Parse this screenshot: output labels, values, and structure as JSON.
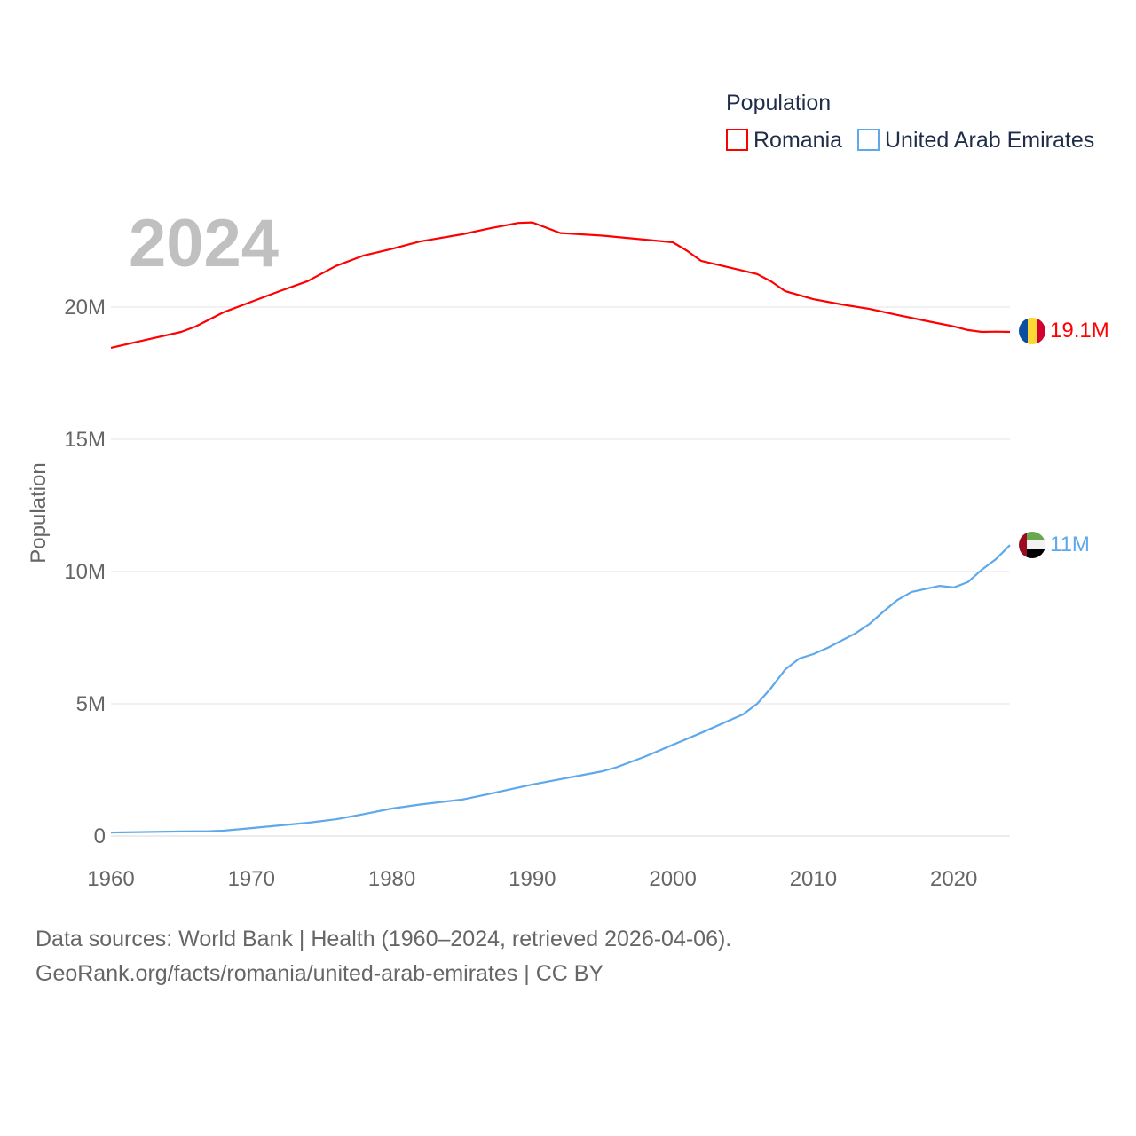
{
  "chart_data": {
    "type": "line",
    "title": "2024",
    "ylabel": "Population",
    "xlabel": "",
    "xlim": [
      1960,
      2024
    ],
    "ylim": [
      0,
      23500000
    ],
    "x_ticks": [
      1960,
      1970,
      1980,
      1990,
      2000,
      2010,
      2020
    ],
    "x_tick_labels": [
      "1960",
      "1970",
      "1980",
      "1990",
      "2000",
      "2010",
      "2020"
    ],
    "y_ticks": [
      0,
      5000000,
      10000000,
      15000000,
      20000000
    ],
    "y_tick_labels": [
      "0",
      "5M",
      "10M",
      "15M",
      "20M"
    ],
    "grid": true,
    "legend": {
      "title": "Population",
      "placement": "top-right"
    },
    "series": [
      {
        "name": "Romania",
        "color": "#ff0000",
        "end_label": "19.1M",
        "flag": "romania-flag",
        "points": [
          [
            1960,
            18.46
          ],
          [
            1962,
            18.7
          ],
          [
            1965,
            19.06
          ],
          [
            1966,
            19.26
          ],
          [
            1968,
            19.8
          ],
          [
            1970,
            20.2
          ],
          [
            1972,
            20.6
          ],
          [
            1974,
            20.98
          ],
          [
            1976,
            21.55
          ],
          [
            1978,
            21.95
          ],
          [
            1980,
            22.2
          ],
          [
            1982,
            22.48
          ],
          [
            1985,
            22.75
          ],
          [
            1987,
            22.98
          ],
          [
            1989,
            23.18
          ],
          [
            1990,
            23.2
          ],
          [
            1992,
            22.8
          ],
          [
            1995,
            22.7
          ],
          [
            1998,
            22.55
          ],
          [
            2000,
            22.45
          ],
          [
            2001,
            22.13
          ],
          [
            2002,
            21.75
          ],
          [
            2004,
            21.5
          ],
          [
            2006,
            21.25
          ],
          [
            2007,
            20.97
          ],
          [
            2008,
            20.6
          ],
          [
            2009,
            20.45
          ],
          [
            2010,
            20.3
          ],
          [
            2012,
            20.1
          ],
          [
            2014,
            19.93
          ],
          [
            2016,
            19.7
          ],
          [
            2018,
            19.48
          ],
          [
            2020,
            19.27
          ],
          [
            2021,
            19.13
          ],
          [
            2022,
            19.06
          ],
          [
            2023,
            19.07
          ],
          [
            2024,
            19.06
          ]
        ]
      },
      {
        "name": "United Arab Emirates",
        "color": "#5ea8eb",
        "end_label": "11M",
        "flag": "uae-flag",
        "points": [
          [
            1960,
            0.13
          ],
          [
            1965,
            0.17
          ],
          [
            1967,
            0.18
          ],
          [
            1968,
            0.2
          ],
          [
            1970,
            0.3
          ],
          [
            1972,
            0.4
          ],
          [
            1974,
            0.5
          ],
          [
            1976,
            0.63
          ],
          [
            1978,
            0.83
          ],
          [
            1980,
            1.04
          ],
          [
            1982,
            1.19
          ],
          [
            1985,
            1.38
          ],
          [
            1987,
            1.6
          ],
          [
            1990,
            1.95
          ],
          [
            1993,
            2.25
          ],
          [
            1995,
            2.45
          ],
          [
            1996,
            2.6
          ],
          [
            1998,
            3.0
          ],
          [
            2000,
            3.45
          ],
          [
            2002,
            3.9
          ],
          [
            2005,
            4.6
          ],
          [
            2006,
            5.0
          ],
          [
            2007,
            5.6
          ],
          [
            2008,
            6.3
          ],
          [
            2009,
            6.71
          ],
          [
            2010,
            6.88
          ],
          [
            2011,
            7.11
          ],
          [
            2013,
            7.66
          ],
          [
            2014,
            8.02
          ],
          [
            2015,
            8.49
          ],
          [
            2016,
            8.93
          ],
          [
            2017,
            9.23
          ],
          [
            2019,
            9.46
          ],
          [
            2020,
            9.4
          ],
          [
            2021,
            9.6
          ],
          [
            2022,
            10.07
          ],
          [
            2023,
            10.47
          ],
          [
            2024,
            11.0
          ]
        ]
      }
    ],
    "value_unit": "millions"
  },
  "footer": {
    "line1": "Data sources: World Bank | Health (1960–2024, retrieved 2026-04-06).",
    "line2": "GeoRank.org/facts/romania/united-arab-emirates | CC BY"
  }
}
